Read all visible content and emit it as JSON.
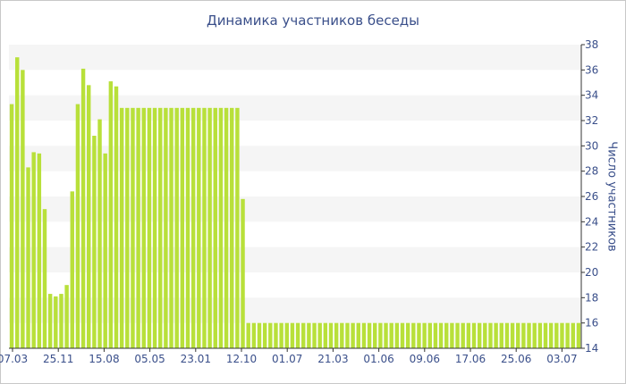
{
  "chart_data": {
    "type": "bar",
    "title": "Динамика участников беседы",
    "xlabel": "",
    "ylabel": "Число участников",
    "ylim": [
      14,
      38
    ],
    "yticks": [
      14,
      16,
      18,
      20,
      22,
      24,
      26,
      28,
      30,
      32,
      34,
      36,
      38
    ],
    "xtick_labels": [
      "07.03",
      "25.11",
      "15.08",
      "05.05",
      "23.01",
      "12.10",
      "01.07",
      "21.03",
      "01.06",
      "09.06",
      "17.06",
      "25.06",
      "03.07"
    ],
    "bar_color": "#b8e03a",
    "band_color": "#f5f5f5",
    "grid": false,
    "legend": "none",
    "values": [
      33.3,
      37,
      36,
      28.3,
      29.5,
      29.4,
      25,
      18.3,
      18.1,
      18.3,
      19,
      26.4,
      33.3,
      36.1,
      34.8,
      30.8,
      32.1,
      29.4,
      35.1,
      34.7,
      33,
      33,
      33,
      33,
      33,
      33,
      33,
      33,
      33,
      33,
      33,
      33,
      33,
      33,
      33,
      33,
      33,
      33,
      33,
      33,
      33,
      33,
      25.8,
      16,
      16,
      16,
      16,
      16,
      16,
      16,
      16,
      16,
      16,
      16,
      16,
      16,
      16,
      16,
      16,
      16,
      16,
      16,
      16,
      16,
      16,
      16,
      16,
      16,
      16,
      16,
      16,
      16,
      16,
      16,
      16,
      16,
      16,
      16,
      16,
      16,
      16,
      16,
      16,
      16,
      16,
      16,
      16,
      16,
      16,
      16,
      16,
      16,
      16,
      16,
      16,
      16,
      16,
      16,
      16,
      16,
      16,
      16,
      16,
      16
    ]
  }
}
